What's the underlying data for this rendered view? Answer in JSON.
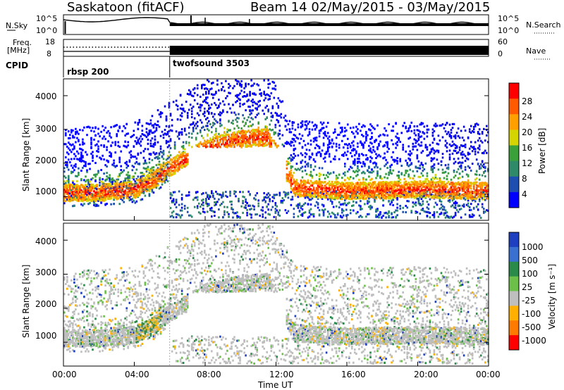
{
  "header": {
    "station": "Saskatoon (fitACF)",
    "beam_range": "Beam 14 02/May/2015 - 03/May/2015"
  },
  "top_panels": {
    "nsky_label": "N.Sky",
    "nsky_ticks": [
      "10^5",
      "10^0"
    ],
    "nsearch_label": "N.Search",
    "nsearch_ticks": [
      "10^5",
      "10^0"
    ],
    "freq_label_1": "Freq.",
    "freq_label_2": "[MHz]",
    "freq_ticks": [
      "18",
      "8"
    ],
    "nave_label": "Nave",
    "nave_ticks": [
      "60",
      "0"
    ],
    "cpid_label": "CPID",
    "cpid_segments": [
      {
        "name": "rbsp 200",
        "start_hour": 0,
        "end_hour": 6
      },
      {
        "name": "twofsound 3503",
        "start_hour": 6,
        "end_hour": 24
      }
    ]
  },
  "chart_data": [
    {
      "type": "heatmap",
      "panel": "power",
      "ylabel": "Slant Range [km]",
      "xlim_hours": [
        0,
        24
      ],
      "ylim": [
        300,
        4500
      ],
      "yticks": [
        "4000",
        "3000",
        "2000",
        "1000"
      ],
      "colorbar_label": "Power [dB]",
      "colorbar_ticks": [
        "28",
        "24",
        "20",
        "16",
        "12",
        "8",
        "4"
      ],
      "colorbar_colors": [
        "#ff0000",
        "#ff5a00",
        "#ffa000",
        "#d4d400",
        "#3aa03a",
        "#2f8a6a",
        "#1e4fb0",
        "#0000ff"
      ],
      "dominant_band": [
        {
          "hour": 0,
          "range": 1150
        },
        {
          "hour": 2,
          "range": 1150
        },
        {
          "hour": 4,
          "range": 1250
        },
        {
          "hour": 5,
          "range": 1500
        },
        {
          "hour": 6,
          "range": 1900
        },
        {
          "hour": 8,
          "range": 2500
        },
        {
          "hour": 10,
          "range": 2750
        },
        {
          "hour": 11.5,
          "range": 2800
        },
        {
          "hour": 13,
          "range": 1300
        },
        {
          "hour": 16,
          "range": 1200
        },
        {
          "hour": 20,
          "range": 1250
        },
        {
          "hour": 24,
          "range": 1200
        }
      ]
    },
    {
      "type": "heatmap",
      "panel": "velocity",
      "ylabel": "Slant Range [km]",
      "xlim_hours": [
        0,
        24
      ],
      "ylim": [
        300,
        4500
      ],
      "yticks": [
        "4000",
        "3000",
        "2000",
        "1000"
      ],
      "colorbar_label": "Velocity [m s⁻¹]",
      "colorbar_ticks": [
        "1000",
        "500",
        "100",
        "25",
        "-25",
        "-100",
        "-500",
        "-1000"
      ],
      "colorbar_colors": [
        "#1e40c0",
        "#3a70d0",
        "#2a8a4a",
        "#6cc04a",
        "#bebebe",
        "#ffb000",
        "#ff7a00",
        "#ff0000"
      ]
    }
  ],
  "xaxis": {
    "ticks": [
      "00:00",
      "04:00",
      "08:00",
      "12:00",
      "16:00",
      "20:00",
      "00:00"
    ],
    "label": "Time UT"
  }
}
